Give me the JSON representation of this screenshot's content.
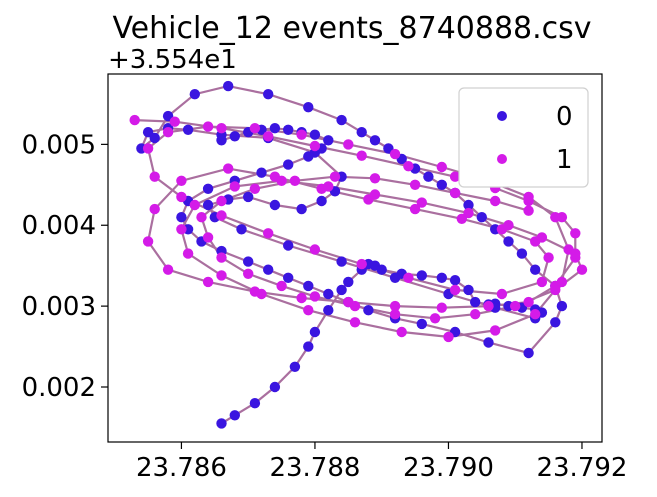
{
  "chart_data": {
    "type": "scatter",
    "title": "Vehicle_12 events_8740888.csv",
    "xlabel": "",
    "ylabel": "",
    "y_offset_label": "+3.554e1",
    "y_offset_value": 35.54,
    "xlim": [
      23.7849,
      23.7923
    ],
    "ylim": [
      0.00132,
      0.00587
    ],
    "x_ticks": [
      23.786,
      23.788,
      23.79,
      23.792
    ],
    "x_tick_labels": [
      "23.786",
      "23.788",
      "23.790",
      "23.792"
    ],
    "y_ticks": [
      0.002,
      0.003,
      0.004,
      0.005
    ],
    "y_tick_labels": [
      "0.002",
      "0.003",
      "0.004",
      "0.005"
    ],
    "grid": false,
    "legend": {
      "placement": "top-right",
      "entries": [
        "0",
        "1"
      ]
    },
    "path_color": "#aa6f9f",
    "series": [
      {
        "name": "0",
        "color": "#3a15e0",
        "x": [
          23.7866,
          23.7868,
          23.7871,
          23.7874,
          23.7877,
          23.7879,
          23.788,
          23.7882,
          23.7884,
          23.7885,
          23.7887,
          23.7888,
          23.7889,
          23.789,
          23.7893,
          23.7896,
          23.7899,
          23.7901,
          23.7903,
          23.7904,
          23.7906,
          23.7907,
          23.7909,
          23.7911,
          23.7913,
          23.7914,
          23.7913,
          23.7907,
          23.79,
          23.7892,
          23.7884,
          23.7876,
          23.7869,
          23.7865,
          23.7864,
          23.7867,
          23.787,
          23.7874,
          23.7878,
          23.7881,
          23.7883,
          23.7884,
          23.788,
          23.7873,
          23.7866,
          23.7861,
          23.7858,
          23.7855,
          23.7854,
          23.7856,
          23.7858,
          23.7862,
          23.7867,
          23.7873,
          23.7879,
          23.7884,
          23.7887,
          23.7889,
          23.7891,
          23.7893,
          23.7895,
          23.7897,
          23.7899,
          23.7901,
          23.7903,
          23.7905,
          23.7907,
          23.7909,
          23.7911,
          23.7913,
          23.7916,
          23.7917,
          23.7916,
          23.7912,
          23.7906,
          23.7901,
          23.7896,
          23.7892,
          23.7888,
          23.7885,
          23.7882,
          23.7879,
          23.7876,
          23.7873,
          23.787,
          23.7866,
          23.7863,
          23.7861,
          23.786,
          23.7861,
          23.7864,
          23.7868,
          23.7872,
          23.7876,
          23.7879,
          23.7881,
          23.7882,
          23.788,
          23.7878,
          23.7876,
          23.7874,
          23.7872,
          23.787,
          23.7868,
          23.7866
        ],
        "y": [
          0.00155,
          0.00165,
          0.0018,
          0.002,
          0.00225,
          0.0025,
          0.00268,
          0.00295,
          0.0032,
          0.0033,
          0.00345,
          0.00352,
          0.0035,
          0.00345,
          0.0034,
          0.00338,
          0.00335,
          0.00332,
          0.0032,
          0.00305,
          0.00302,
          0.00303,
          0.003,
          0.00298,
          0.00296,
          0.00292,
          0.00285,
          0.00298,
          0.00315,
          0.00335,
          0.00355,
          0.00375,
          0.00395,
          0.0041,
          0.00425,
          0.00432,
          0.00435,
          0.00425,
          0.0042,
          0.0043,
          0.00442,
          0.0046,
          0.0049,
          0.00508,
          0.00512,
          0.00518,
          0.0052,
          0.00515,
          0.00495,
          0.00508,
          0.00535,
          0.00562,
          0.00572,
          0.00562,
          0.00546,
          0.0053,
          0.00515,
          0.00505,
          0.00495,
          0.00482,
          0.0047,
          0.0046,
          0.0045,
          0.0044,
          0.00425,
          0.0041,
          0.00395,
          0.0038,
          0.00365,
          0.00345,
          0.00325,
          0.003,
          0.0028,
          0.00242,
          0.00255,
          0.00268,
          0.00278,
          0.00285,
          0.00295,
          0.00305,
          0.00315,
          0.00325,
          0.00335,
          0.00345,
          0.00355,
          0.00368,
          0.0038,
          0.00395,
          0.0041,
          0.0043,
          0.00445,
          0.00455,
          0.00465,
          0.00475,
          0.00485,
          0.00495,
          0.00505,
          0.00512,
          0.00515,
          0.00518,
          0.0052,
          0.00518,
          0.00515,
          0.0051,
          0.00505
        ]
      },
      {
        "name": "1",
        "color": "#d41be8",
        "x": [
          23.7853,
          23.7859,
          23.7866,
          23.7873,
          23.788,
          23.7887,
          23.7894,
          23.7901,
          23.7907,
          23.7912,
          23.7917,
          23.7919,
          23.7919,
          23.7916,
          23.7912,
          23.7906,
          23.7899,
          23.7892,
          23.7885,
          23.7878,
          23.7871,
          23.7864,
          23.7858,
          23.7855,
          23.7856,
          23.786,
          23.7867,
          23.7874,
          23.7881,
          23.7888,
          23.7895,
          23.7902,
          23.7908,
          23.7913,
          23.7915,
          23.7914,
          23.7908,
          23.7901,
          23.7894,
          23.7887,
          23.788,
          23.7873,
          23.7866,
          23.786,
          23.7856,
          23.7855,
          23.7858,
          23.7864,
          23.7871,
          23.7878,
          23.7885,
          23.7892,
          23.7899,
          23.7906,
          23.7912,
          23.7916,
          23.7918,
          23.7917,
          23.7913,
          23.7907,
          23.79,
          23.7893,
          23.7886,
          23.7879,
          23.7872,
          23.7866,
          23.7861,
          23.786,
          23.7862,
          23.7868,
          23.7875,
          23.7882,
          23.7889,
          23.7896,
          23.7903,
          23.7909,
          23.7914,
          23.7919,
          23.792,
          23.7916,
          23.791,
          23.7904,
          23.7898,
          23.7892,
          23.7886,
          23.788,
          23.7875,
          23.787,
          23.7866,
          23.7864,
          23.7863,
          23.7866,
          23.7871,
          23.7877,
          23.7883,
          23.7889,
          23.7895,
          23.7901,
          23.7907,
          23.7912
        ],
        "y": [
          0.0053,
          0.00528,
          0.0052,
          0.0051,
          0.00498,
          0.00486,
          0.00473,
          0.0046,
          0.00446,
          0.0043,
          0.0041,
          0.0039,
          0.0036,
          0.00325,
          0.00305,
          0.003,
          0.00298,
          0.003,
          0.00305,
          0.0031,
          0.00318,
          0.0033,
          0.00345,
          0.0038,
          0.0042,
          0.00455,
          0.0047,
          0.0046,
          0.00445,
          0.00432,
          0.0042,
          0.00408,
          0.00395,
          0.0038,
          0.0036,
          0.0033,
          0.00315,
          0.0032,
          0.00335,
          0.00352,
          0.0037,
          0.0039,
          0.00412,
          0.00435,
          0.0046,
          0.00495,
          0.00515,
          0.00522,
          0.0052,
          0.00512,
          0.005,
          0.00488,
          0.00472,
          0.00455,
          0.00435,
          0.0041,
          0.0037,
          0.0033,
          0.0029,
          0.0027,
          0.00262,
          0.00268,
          0.0028,
          0.00295,
          0.00315,
          0.00338,
          0.00365,
          0.00395,
          0.00425,
          0.00448,
          0.00455,
          0.00448,
          0.00438,
          0.00428,
          0.00415,
          0.004,
          0.00385,
          0.00365,
          0.00345,
          0.0032,
          0.003,
          0.0029,
          0.00285,
          0.0029,
          0.003,
          0.00312,
          0.00325,
          0.0034,
          0.0036,
          0.00385,
          0.0041,
          0.0043,
          0.00445,
          0.00455,
          0.0046,
          0.00458,
          0.0045,
          0.0044,
          0.0043,
          0.00418
        ]
      }
    ]
  }
}
